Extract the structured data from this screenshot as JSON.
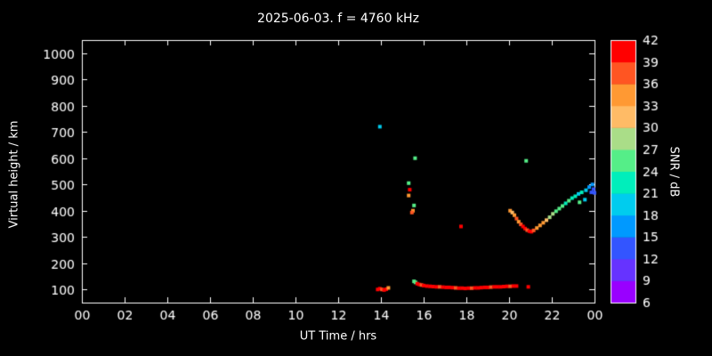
{
  "title": "2025-06-03. f = 4760 kHz",
  "colorbar": {
    "label": "SNR / dB",
    "min": 6,
    "max": 42,
    "step": 3,
    "ticks": [
      6,
      9,
      12,
      15,
      18,
      21,
      24,
      27,
      30,
      33,
      36,
      39,
      42
    ],
    "bands": [
      "#9900ff",
      "#6633ff",
      "#3355ff",
      "#0099ff",
      "#00ccee",
      "#00eebb",
      "#55ee88",
      "#aadd88",
      "#ffbb66",
      "#ff9933",
      "#ff5522",
      "#ff0000"
    ]
  },
  "chart_data": {
    "type": "scatter",
    "title": "2025-06-03. f = 4760 kHz",
    "xlabel": "UT Time / hrs",
    "ylabel": "Virtual height / km",
    "xlim": [
      0,
      24
    ],
    "ylim": [
      50,
      1050
    ],
    "grid": false,
    "background": "#000000",
    "axis_color": "#ffffff",
    "xticks": [
      {
        "v": 0,
        "label": "00"
      },
      {
        "v": 2,
        "label": "02"
      },
      {
        "v": 4,
        "label": "04"
      },
      {
        "v": 6,
        "label": "06"
      },
      {
        "v": 8,
        "label": "08"
      },
      {
        "v": 10,
        "label": "10"
      },
      {
        "v": 12,
        "label": "12"
      },
      {
        "v": 14,
        "label": "14"
      },
      {
        "v": 16,
        "label": "16"
      },
      {
        "v": 18,
        "label": "18"
      },
      {
        "v": 20,
        "label": "20"
      },
      {
        "v": 22,
        "label": "22"
      },
      {
        "v": 24,
        "label": "00"
      }
    ],
    "yticks": [
      {
        "v": 100,
        "label": "100"
      },
      {
        "v": 200,
        "label": "200"
      },
      {
        "v": 300,
        "label": "300"
      },
      {
        "v": 400,
        "label": "400"
      },
      {
        "v": 500,
        "label": "500"
      },
      {
        "v": 600,
        "label": "600"
      },
      {
        "v": 700,
        "label": "700"
      },
      {
        "v": 800,
        "label": "800"
      },
      {
        "v": 900,
        "label": "900"
      },
      {
        "v": 1000,
        "label": "1000"
      }
    ],
    "series_note": "points are [ut_hour, virtual_height_km, snr_db]",
    "points": [
      [
        13.95,
        720,
        19
      ],
      [
        15.6,
        600,
        25
      ],
      [
        20.8,
        590,
        25
      ],
      [
        15.3,
        505,
        25
      ],
      [
        15.35,
        480,
        40
      ],
      [
        15.3,
        458,
        34
      ],
      [
        15.55,
        420,
        25
      ],
      [
        15.5,
        400,
        34
      ],
      [
        15.45,
        393,
        37
      ],
      [
        17.75,
        340,
        40
      ],
      [
        20.05,
        400,
        34
      ],
      [
        20.15,
        393,
        31
      ],
      [
        20.25,
        383,
        34
      ],
      [
        20.35,
        370,
        37
      ],
      [
        20.45,
        358,
        34
      ],
      [
        20.55,
        348,
        37
      ],
      [
        20.65,
        340,
        40
      ],
      [
        20.75,
        332,
        40
      ],
      [
        20.85,
        326,
        37
      ],
      [
        20.95,
        322,
        40
      ],
      [
        21.05,
        320,
        40
      ],
      [
        21.15,
        325,
        37
      ],
      [
        21.3,
        334,
        34
      ],
      [
        21.45,
        344,
        34
      ],
      [
        21.6,
        354,
        34
      ],
      [
        21.75,
        364,
        31
      ],
      [
        21.9,
        375,
        28
      ],
      [
        22.05,
        388,
        28
      ],
      [
        22.2,
        398,
        25
      ],
      [
        22.35,
        408,
        25
      ],
      [
        22.5,
        418,
        25
      ],
      [
        22.65,
        428,
        22
      ],
      [
        22.8,
        438,
        25
      ],
      [
        22.95,
        448,
        22
      ],
      [
        23.1,
        455,
        22
      ],
      [
        23.25,
        464,
        19
      ],
      [
        23.4,
        470,
        22
      ],
      [
        23.3,
        432,
        25
      ],
      [
        23.55,
        442,
        19
      ],
      [
        23.6,
        478,
        19
      ],
      [
        23.75,
        490,
        16
      ],
      [
        23.85,
        470,
        13
      ],
      [
        23.9,
        500,
        16
      ],
      [
        23.95,
        482,
        13
      ],
      [
        24.0,
        468,
        13
      ],
      [
        13.85,
        100,
        40
      ],
      [
        13.95,
        103,
        40
      ],
      [
        14.05,
        100,
        37
      ],
      [
        14.15,
        98,
        40
      ],
      [
        14.25,
        101,
        40
      ],
      [
        14.35,
        106,
        34
      ],
      [
        15.55,
        131,
        25
      ],
      [
        15.62,
        127,
        25
      ],
      [
        15.7,
        122,
        40
      ],
      [
        15.8,
        119,
        40
      ],
      [
        15.9,
        117,
        37
      ],
      [
        16.0,
        115,
        40
      ],
      [
        16.15,
        113,
        40
      ],
      [
        16.3,
        112,
        40
      ],
      [
        16.45,
        111,
        40
      ],
      [
        16.6,
        110,
        40
      ],
      [
        16.75,
        110,
        37
      ],
      [
        16.9,
        109,
        40
      ],
      [
        17.05,
        108,
        40
      ],
      [
        17.2,
        108,
        40
      ],
      [
        17.35,
        107,
        40
      ],
      [
        17.5,
        106,
        37
      ],
      [
        17.65,
        105,
        40
      ],
      [
        17.8,
        105,
        40
      ],
      [
        17.95,
        104,
        40
      ],
      [
        18.1,
        105,
        40
      ],
      [
        18.25,
        105,
        37
      ],
      [
        18.4,
        106,
        40
      ],
      [
        18.55,
        106,
        40
      ],
      [
        18.7,
        107,
        40
      ],
      [
        18.85,
        108,
        40
      ],
      [
        19.0,
        108,
        40
      ],
      [
        19.15,
        109,
        37
      ],
      [
        19.3,
        110,
        40
      ],
      [
        19.45,
        110,
        40
      ],
      [
        19.6,
        110,
        40
      ],
      [
        19.75,
        111,
        40
      ],
      [
        19.9,
        112,
        40
      ],
      [
        20.05,
        112,
        37
      ],
      [
        20.2,
        113,
        40
      ],
      [
        20.35,
        113,
        40
      ],
      [
        20.9,
        110,
        40
      ]
    ]
  }
}
